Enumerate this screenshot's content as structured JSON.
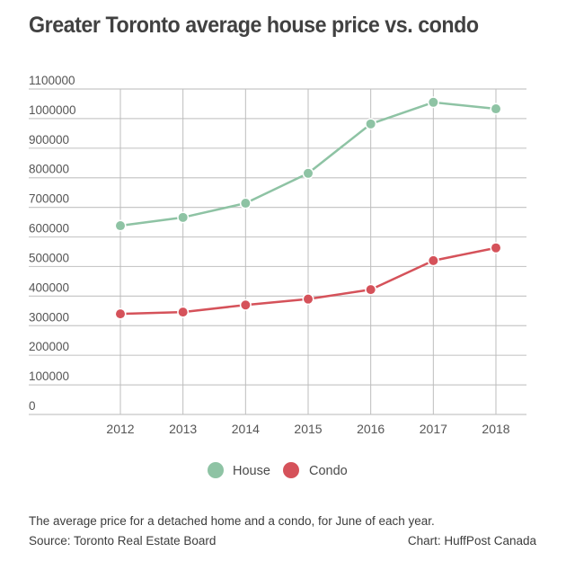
{
  "title": "Greater Toronto average house price vs. condo",
  "footer": {
    "description": "The average price for a detached home and a condo, for June of each year.",
    "source": "Source: Toronto Real Estate Board",
    "credit": "Chart: HuffPost Canada"
  },
  "chart_data": {
    "type": "line",
    "title": "Greater Toronto average house price vs. condo",
    "xlabel": "",
    "ylabel": "",
    "x": [
      "2012",
      "2013",
      "2014",
      "2015",
      "2016",
      "2017",
      "2018"
    ],
    "ylim": [
      0,
      1100000
    ],
    "yticks": [
      0,
      100000,
      200000,
      300000,
      400000,
      500000,
      600000,
      700000,
      800000,
      900000,
      1000000,
      1100000
    ],
    "grid": true,
    "legend": "bottom-center",
    "series": [
      {
        "name": "House",
        "color": "#8ec3a4",
        "values": [
          638000,
          666000,
          714000,
          815000,
          982000,
          1055000,
          1033000
        ]
      },
      {
        "name": "Condo",
        "color": "#d5525a",
        "values": [
          340000,
          346000,
          370000,
          390000,
          422000,
          520000,
          563000
        ]
      }
    ]
  }
}
